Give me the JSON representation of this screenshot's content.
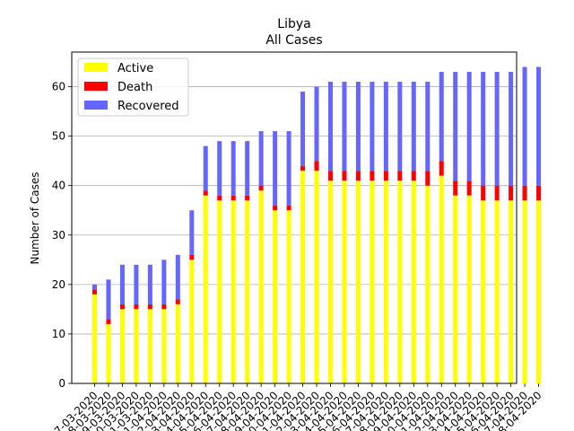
{
  "chart_data": {
    "type": "bar",
    "stacked": true,
    "title": "Libya",
    "subtitle": "All Cases",
    "xlabel": "",
    "ylabel": "Number of Cases",
    "ylim": [
      0,
      67
    ],
    "yticks": [
      0,
      10,
      20,
      30,
      40,
      50,
      60
    ],
    "grid": "horizontal",
    "legend_position": "top-left",
    "categories": [
      "27-03-2020",
      "28-03-2020",
      "29-03-2020",
      "30-03-2020",
      "31-03-2020",
      "01-04-2020",
      "02-04-2020",
      "03-04-2020",
      "04-04-2020",
      "05-04-2020",
      "06-04-2020",
      "07-04-2020",
      "08-04-2020",
      "09-04-2020",
      "10-04-2020",
      "11-04-2020",
      "12-04-2020",
      "13-04-2020",
      "14-04-2020",
      "15-04-2020",
      "16-04-2020",
      "17-04-2020",
      "18-04-2020",
      "19-04-2020",
      "20-04-2020",
      "21-04-2020",
      "22-04-2020",
      "23-04-2020",
      "24-04-2020",
      "25-04-2020",
      "26-04-2020",
      "27-04-2020",
      "28-04-2020"
    ],
    "series": [
      {
        "name": "Active",
        "color": "#ffff00",
        "values": [
          18,
          12,
          15,
          15,
          15,
          15,
          16,
          25,
          38,
          37,
          37,
          37,
          39,
          35,
          35,
          43,
          43,
          41,
          41,
          41,
          41,
          41,
          41,
          41,
          40,
          42,
          38,
          38,
          37,
          37,
          37,
          37,
          37
        ]
      },
      {
        "name": "Death",
        "color": "#ff0000",
        "values": [
          1,
          1,
          1,
          1,
          1,
          1,
          1,
          1,
          1,
          1,
          1,
          1,
          1,
          1,
          1,
          1,
          2,
          2,
          2,
          2,
          2,
          2,
          2,
          2,
          3,
          3,
          3,
          3,
          3,
          3,
          3,
          3,
          3
        ]
      },
      {
        "name": "Recovered",
        "color": "#6666ff",
        "values": [
          1,
          8,
          8,
          8,
          8,
          9,
          9,
          9,
          9,
          11,
          11,
          11,
          11,
          15,
          15,
          15,
          15,
          18,
          18,
          18,
          18,
          18,
          18,
          18,
          18,
          18,
          22,
          22,
          23,
          23,
          23,
          24,
          24
        ]
      }
    ]
  }
}
